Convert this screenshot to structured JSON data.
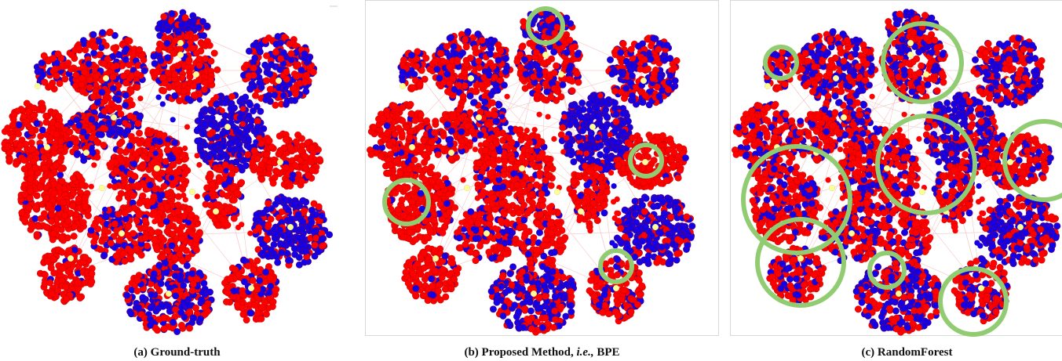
{
  "captions": {
    "a": "(a) Ground-truth",
    "b_prefix": "(b) Proposed Method, ",
    "b_ie": "i.e.,",
    "b_suffix": " BPE",
    "c": "(c) RandomForest"
  },
  "colors": {
    "class_red": "#ff0000",
    "class_blue": "#1400e6",
    "center_node": "#ffff99",
    "highlight_circle": "#92cc72",
    "edge": "#f2b8b8"
  }
}
